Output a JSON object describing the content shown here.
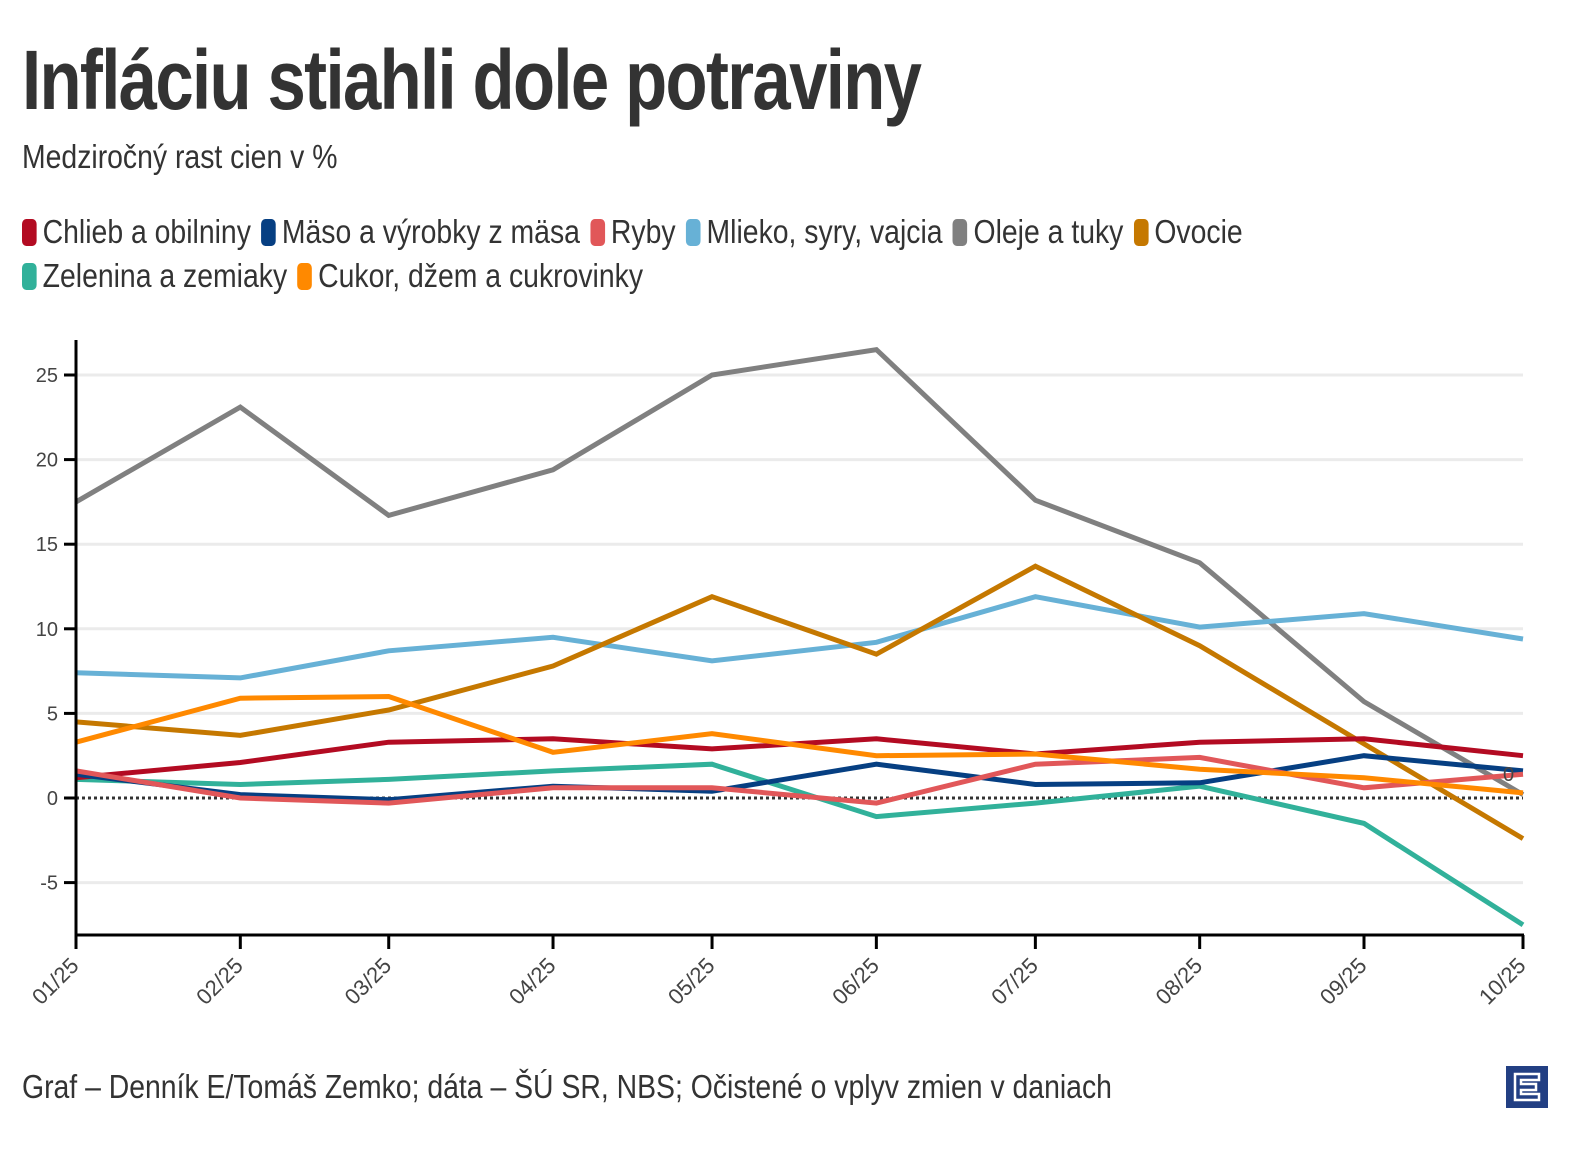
{
  "header": {
    "title": "Infláciu stiahli dole potraviny",
    "subtitle": "Medziročný rast cien v %"
  },
  "footer": {
    "source": "Graf – Denník E/Tomáš Zemko; dáta – ŠÚ SR, NBS; Očistené o vplyv zmien v daniach",
    "logo_icon": "denník-e-logo-icon"
  },
  "chart_data": {
    "type": "line",
    "title": "Infláciu stiahli dole potraviny",
    "subtitle": "Medziročný rast cien v %",
    "xlabel": "",
    "ylabel": "",
    "x": [
      "01/25",
      "02/25",
      "03/25",
      "04/25",
      "05/25",
      "06/25",
      "07/25",
      "08/25",
      "09/25",
      "10/25"
    ],
    "yticks": [
      -5,
      0,
      5,
      10,
      15,
      20,
      25
    ],
    "ylim": [
      -8,
      27
    ],
    "grid": true,
    "legend_position": "top",
    "zero_line": "dotted",
    "end_annotation": "0",
    "series": [
      {
        "name": "Chlieb a obilniny",
        "color": "#b30b22",
        "values": [
          1.2,
          2.1,
          3.3,
          3.5,
          2.9,
          3.5,
          2.6,
          3.3,
          3.5,
          2.5
        ]
      },
      {
        "name": "Mäso a výrobky z mäsa",
        "color": "#063f82",
        "values": [
          1.4,
          0.2,
          -0.1,
          0.7,
          0.4,
          2.0,
          0.8,
          0.9,
          2.5,
          1.6
        ]
      },
      {
        "name": "Ryby",
        "color": "#e15759",
        "values": [
          1.6,
          0.0,
          -0.3,
          0.6,
          0.6,
          -0.3,
          2.0,
          2.4,
          0.6,
          1.4
        ]
      },
      {
        "name": "Mlieko, syry, vajcia",
        "color": "#67b1d6",
        "values": [
          7.4,
          7.1,
          8.7,
          9.5,
          8.1,
          9.2,
          11.9,
          10.1,
          10.9,
          9.4
        ]
      },
      {
        "name": "Oleje a tuky",
        "color": "#808080",
        "values": [
          17.5,
          23.1,
          16.7,
          19.4,
          25.0,
          26.5,
          17.6,
          13.9,
          5.7,
          0.2
        ]
      },
      {
        "name": "Ovocie",
        "color": "#c57800",
        "values": [
          4.5,
          3.7,
          5.2,
          7.8,
          11.9,
          8.5,
          13.7,
          9.0,
          3.2,
          -2.4
        ]
      },
      {
        "name": "Zelenina a zemiaky",
        "color": "#31b19a",
        "values": [
          1.1,
          0.8,
          1.1,
          1.6,
          2.0,
          -1.1,
          -0.3,
          0.7,
          -1.5,
          -7.5
        ]
      },
      {
        "name": "Cukor, džem a cukrovinky",
        "color": "#ff8900",
        "values": [
          3.3,
          5.9,
          6.0,
          2.7,
          3.8,
          2.5,
          2.6,
          1.7,
          1.2,
          0.3
        ]
      }
    ]
  }
}
